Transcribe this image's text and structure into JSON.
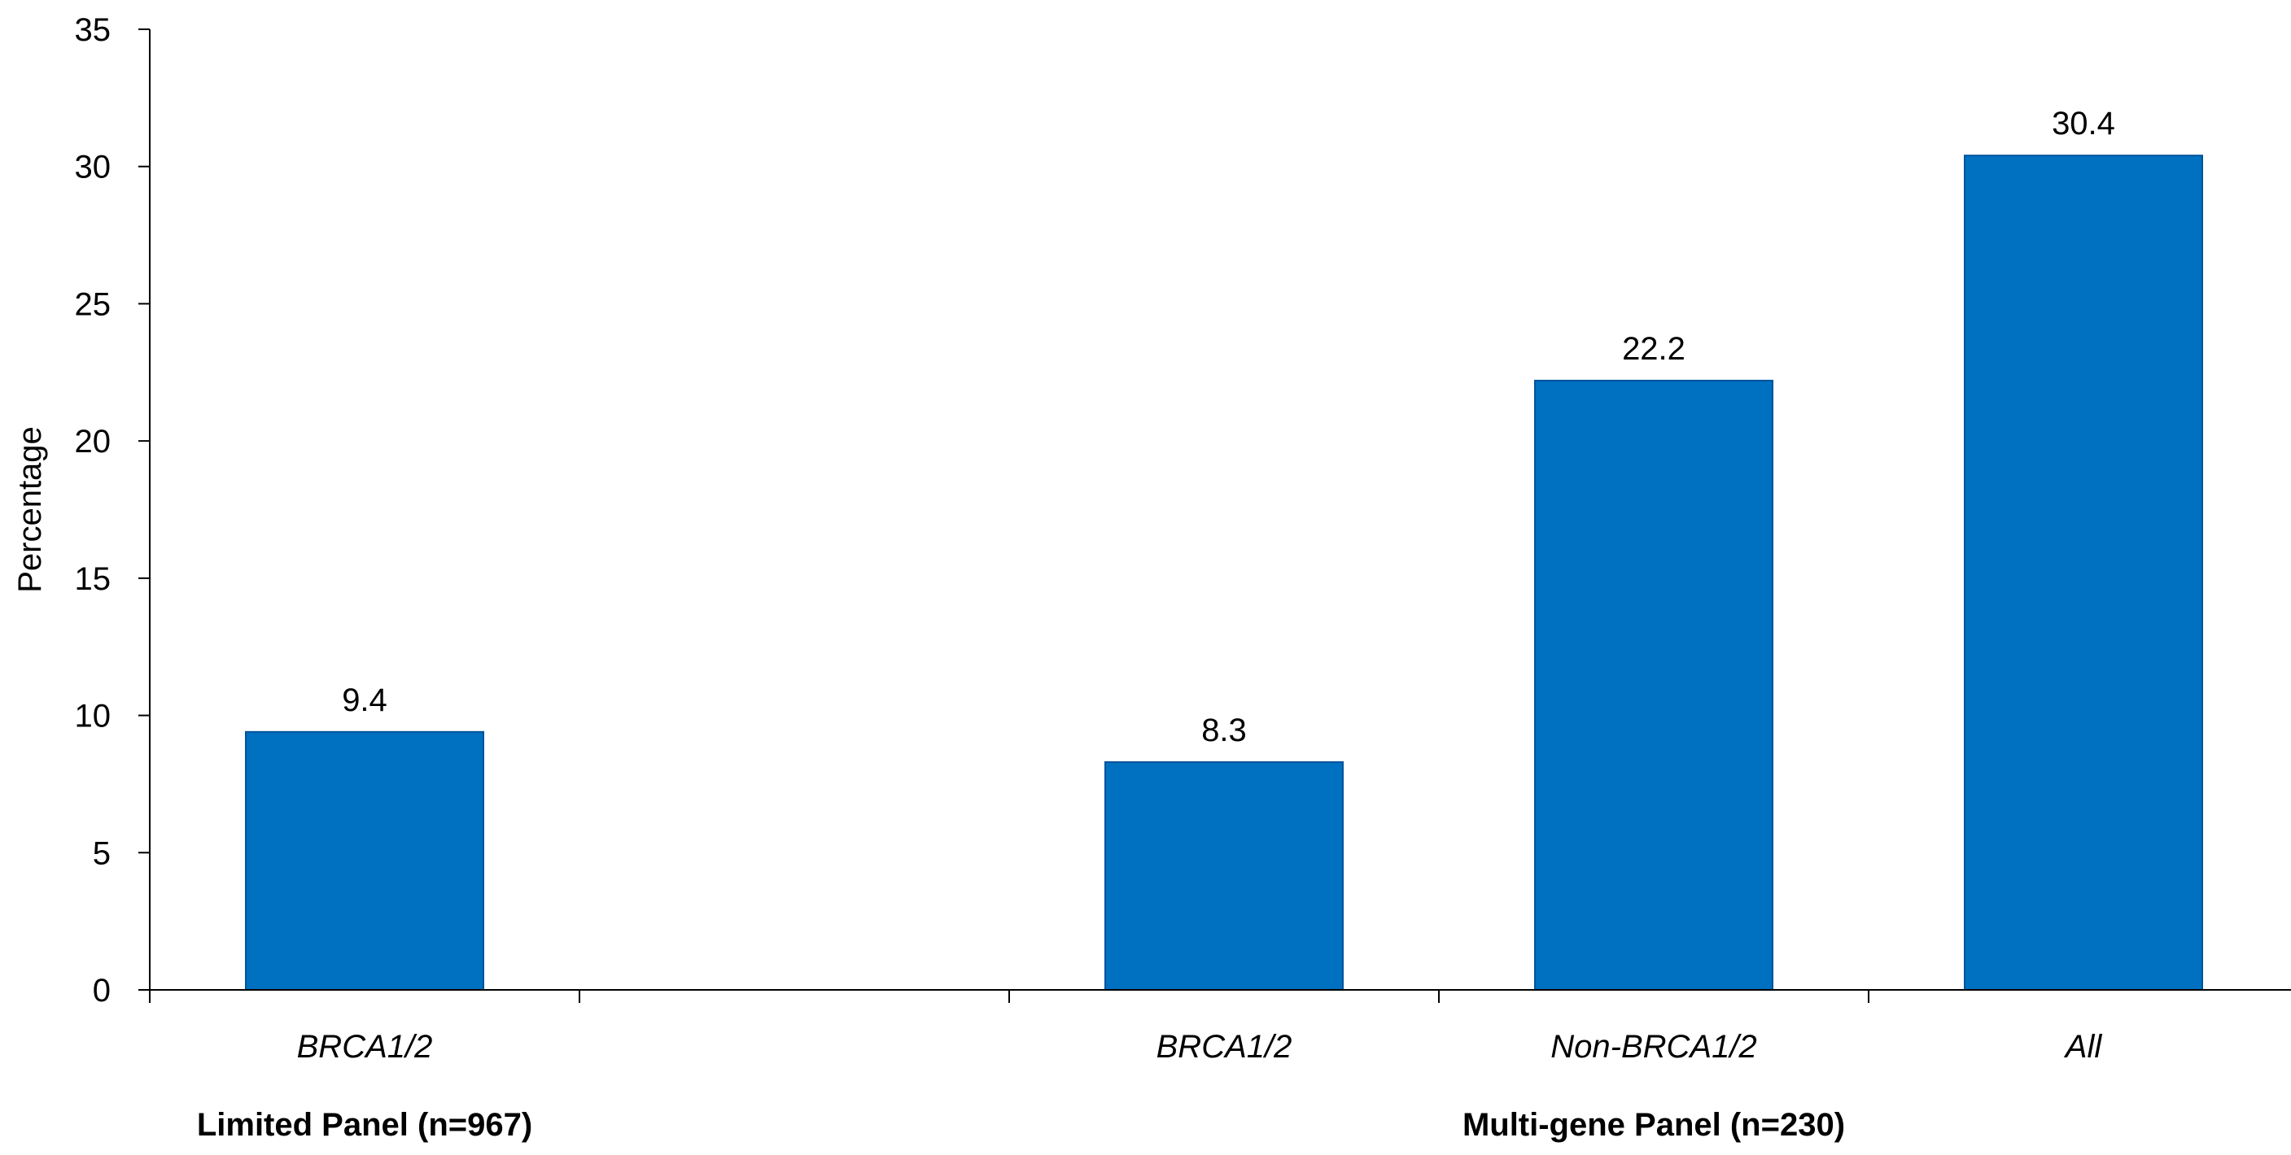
{
  "chart_data": {
    "type": "bar",
    "title": "",
    "xlabel": "",
    "ylabel": "Percentage",
    "ylim": [
      0,
      35
    ],
    "yticks": [
      0,
      5,
      10,
      15,
      20,
      25,
      30,
      35
    ],
    "grid": false,
    "legend": "none",
    "bar_color": "#0070C0",
    "categories": [
      "BRCA1/2",
      "",
      "BRCA1/2",
      "Non-BRCA1/2",
      "All"
    ],
    "values": [
      9.4,
      null,
      8.3,
      22.2,
      30.4
    ],
    "data_labels": [
      "9.4",
      "",
      "8.3",
      "22.2",
      "30.4"
    ],
    "groups": [
      {
        "label": "Limited Panel (n=967)",
        "categories": [
          0
        ]
      },
      {
        "label": "Multi-gene Panel (n=230)",
        "categories": [
          2,
          3,
          4
        ]
      }
    ]
  }
}
